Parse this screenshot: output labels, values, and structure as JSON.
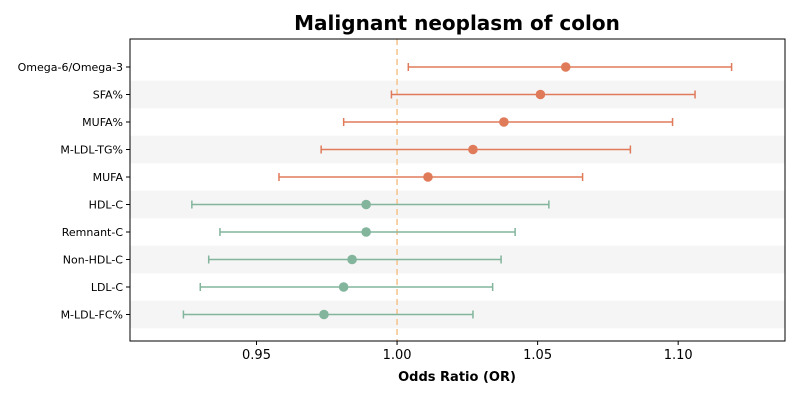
{
  "chart_data": {
    "type": "forest",
    "title": "Malignant neoplasm of colon",
    "xlabel": "Odds Ratio (OR)",
    "ylabel": "",
    "xlim": [
      0.905,
      1.138
    ],
    "xticks": [
      0.95,
      1.0,
      1.05,
      1.1
    ],
    "xtick_labels": [
      "0.95",
      "1.00",
      "1.05",
      "1.10"
    ],
    "reference_line": 1.0,
    "reference_color": "#f5c28a",
    "row_band_color": "#f5f5f5",
    "colors": {
      "risk": "#e07b5a",
      "protective": "#82b59c"
    },
    "rows": [
      {
        "label": "Omega-6/Omega-3",
        "or": 1.06,
        "lower": 1.004,
        "upper": 1.119,
        "group": "risk"
      },
      {
        "label": "SFA%",
        "or": 1.051,
        "lower": 0.998,
        "upper": 1.106,
        "group": "risk"
      },
      {
        "label": "MUFA%",
        "or": 1.038,
        "lower": 0.981,
        "upper": 1.098,
        "group": "risk"
      },
      {
        "label": "M-LDL-TG%",
        "or": 1.027,
        "lower": 0.973,
        "upper": 1.083,
        "group": "risk"
      },
      {
        "label": "MUFA",
        "or": 1.011,
        "lower": 0.958,
        "upper": 1.066,
        "group": "risk"
      },
      {
        "label": "HDL-C",
        "or": 0.989,
        "lower": 0.927,
        "upper": 1.054,
        "group": "protective"
      },
      {
        "label": "Remnant-C",
        "or": 0.989,
        "lower": 0.937,
        "upper": 1.042,
        "group": "protective"
      },
      {
        "label": "Non-HDL-C",
        "or": 0.984,
        "lower": 0.933,
        "upper": 1.037,
        "group": "protective"
      },
      {
        "label": "LDL-C",
        "or": 0.981,
        "lower": 0.93,
        "upper": 1.034,
        "group": "protective"
      },
      {
        "label": "M-LDL-FC%",
        "or": 0.974,
        "lower": 0.924,
        "upper": 1.027,
        "group": "protective"
      }
    ]
  }
}
